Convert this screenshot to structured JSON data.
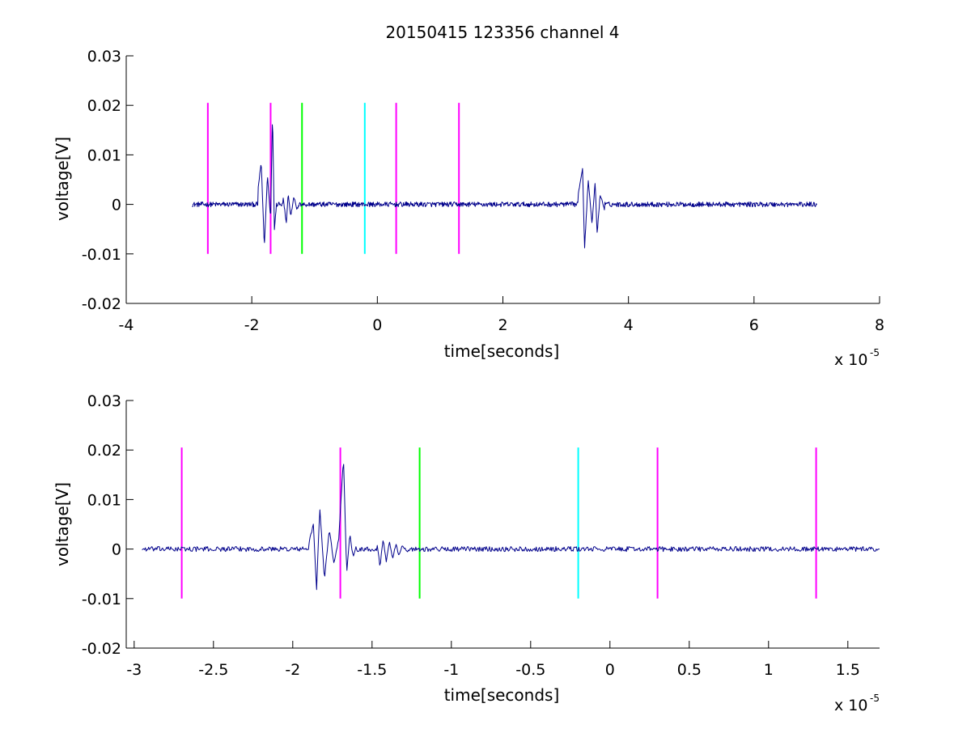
{
  "figure": {
    "background": "#ffffff",
    "axis_color": "#000000",
    "signal_color": "#00008b"
  },
  "chart_data": [
    {
      "type": "line",
      "title": "20150415 123356 channel 4",
      "xlabel": "time[seconds]",
      "ylabel": "voltage[V]",
      "x_scale_label": "x 10",
      "x_scale_exponent": "-5",
      "x_unit_scale": 1e-05,
      "xlim": [
        -4,
        8
      ],
      "ylim": [
        -0.02,
        0.03
      ],
      "xticks": [
        -4,
        -2,
        0,
        2,
        4,
        6,
        8
      ],
      "xtick_labels": [
        "-4",
        "-2",
        "0",
        "2",
        "4",
        "6",
        "8"
      ],
      "yticks": [
        -0.02,
        -0.01,
        0,
        0.01,
        0.02,
        0.03
      ],
      "ytick_labels": [
        "-0.02",
        "-0.01",
        "0",
        "0.01",
        "0.02",
        "0.03"
      ],
      "grid": false,
      "markers": [
        {
          "x": -2.7,
          "color": "#ff00ff",
          "y_range": [
            -0.01,
            0.0205
          ]
        },
        {
          "x": -1.7,
          "color": "#ff00ff",
          "y_range": [
            -0.01,
            0.0205
          ]
        },
        {
          "x": -1.2,
          "color": "#00ff00",
          "y_range": [
            -0.01,
            0.0205
          ]
        },
        {
          "x": -0.2,
          "color": "#00ffff",
          "y_range": [
            -0.01,
            0.0205
          ]
        },
        {
          "x": 0.3,
          "color": "#ff00ff",
          "y_range": [
            -0.01,
            0.0205
          ]
        },
        {
          "x": 1.3,
          "color": "#ff00ff",
          "y_range": [
            -0.01,
            0.0205
          ]
        }
      ],
      "signal": {
        "x_range": [
          -2.95,
          7.0
        ],
        "noise_amplitude": 0.0005,
        "bursts": [
          {
            "x": [
              -1.9,
              -1.85,
              -1.8,
              -1.75,
              -1.7,
              -1.67,
              -1.64,
              -1.6
            ],
            "y": [
              0.003,
              0.0085,
              -0.0085,
              0.006,
              -0.003,
              0.0185,
              -0.005,
              0.001
            ]
          },
          {
            "x": [
              -1.5,
              -1.45,
              -1.42,
              -1.38,
              -1.33,
              -1.28,
              -1.22
            ],
            "y": [
              0.0015,
              -0.004,
              0.002,
              -0.0025,
              0.0015,
              -0.001,
              0.0005
            ]
          },
          {
            "x": [
              3.2,
              3.27,
              3.3,
              3.36,
              3.42,
              3.47,
              3.5,
              3.55,
              3.62
            ],
            "y": [
              0.002,
              0.0075,
              -0.009,
              0.005,
              -0.004,
              0.0045,
              -0.006,
              0.002,
              -0.001
            ]
          }
        ]
      }
    },
    {
      "type": "line",
      "title": "",
      "xlabel": "time[seconds]",
      "ylabel": "voltage[V]",
      "x_scale_label": "x 10",
      "x_scale_exponent": "-5",
      "x_unit_scale": 1e-05,
      "xlim": [
        -3.05,
        1.7
      ],
      "ylim": [
        -0.02,
        0.03
      ],
      "xticks": [
        -3,
        -2.5,
        -2,
        -1.5,
        -1,
        -0.5,
        0,
        0.5,
        1,
        1.5
      ],
      "xtick_labels": [
        "-3",
        "-2.5",
        "-2",
        "-1.5",
        "-1",
        "-0.5",
        "0",
        "0.5",
        "1",
        "1.5"
      ],
      "yticks": [
        -0.02,
        -0.01,
        0,
        0.01,
        0.02,
        0.03
      ],
      "ytick_labels": [
        "-0.02",
        "-0.01",
        "0",
        "0.01",
        "0.02",
        "0.03"
      ],
      "grid": false,
      "markers": [
        {
          "x": -2.7,
          "color": "#ff00ff",
          "y_range": [
            -0.01,
            0.0205
          ]
        },
        {
          "x": -1.7,
          "color": "#ff00ff",
          "y_range": [
            -0.01,
            0.0205
          ]
        },
        {
          "x": -1.2,
          "color": "#00ff00",
          "y_range": [
            -0.01,
            0.0205
          ]
        },
        {
          "x": -0.2,
          "color": "#00ffff",
          "y_range": [
            -0.01,
            0.0205
          ]
        },
        {
          "x": 0.3,
          "color": "#ff00ff",
          "y_range": [
            -0.01,
            0.0205
          ]
        },
        {
          "x": 1.3,
          "color": "#ff00ff",
          "y_range": [
            -0.01,
            0.0205
          ]
        }
      ],
      "signal": {
        "x_range": [
          -2.95,
          1.7
        ],
        "noise_amplitude": 0.0005,
        "bursts": [
          {
            "x": [
              -1.9,
              -1.87,
              -1.85,
              -1.83,
              -1.8,
              -1.77,
              -1.74,
              -1.71,
              -1.68,
              -1.66,
              -1.64,
              -1.62,
              -1.6
            ],
            "y": [
              0.001,
              0.005,
              -0.0085,
              0.0085,
              -0.006,
              0.004,
              -0.003,
              0.002,
              0.0185,
              -0.005,
              0.003,
              -0.0015,
              0.0005
            ]
          },
          {
            "x": [
              -1.47,
              -1.45,
              -1.43,
              -1.41,
              -1.39,
              -1.37,
              -1.35,
              -1.33,
              -1.31,
              -1.28,
              -1.25
            ],
            "y": [
              0.0015,
              -0.0035,
              0.002,
              -0.0025,
              0.0015,
              -0.002,
              0.001,
              -0.0012,
              0.0008,
              -0.0005,
              0.0003
            ]
          }
        ]
      }
    }
  ]
}
